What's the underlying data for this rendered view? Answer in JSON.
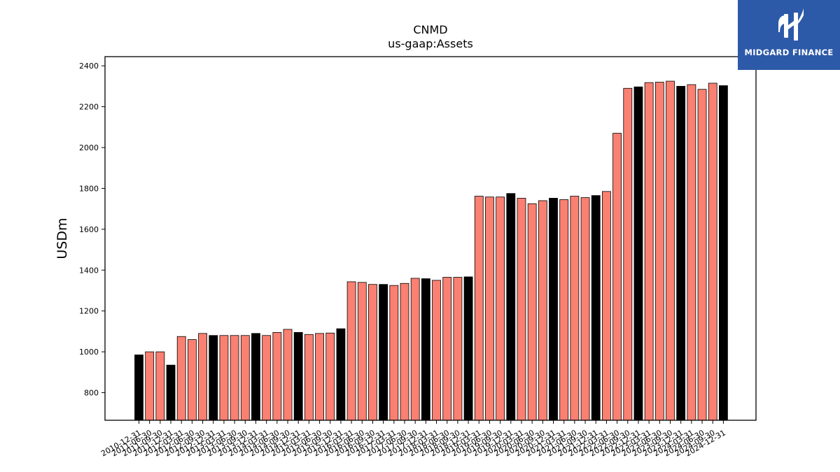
{
  "chart_data": {
    "type": "bar",
    "title": "CNMD",
    "subtitle": "us-gaap:Assets",
    "ylabel": "USDm",
    "ylim": [
      665,
      2445
    ],
    "yticks": [
      800,
      1000,
      1200,
      1400,
      1600,
      1800,
      2000,
      2200,
      2400
    ],
    "colors": {
      "annual": "#000000",
      "quarterly": "#fa8072",
      "edge": "#000000"
    },
    "categories": [
      "2010-12-31",
      "2011-06-30",
      "2011-09-30",
      "2011-12-31",
      "2012-03-31",
      "2012-06-30",
      "2012-09-30",
      "2012-12-31",
      "2013-03-31",
      "2013-06-30",
      "2013-09-30",
      "2013-12-31",
      "2014-03-31",
      "2014-06-30",
      "2014-09-30",
      "2014-12-31",
      "2015-03-31",
      "2015-06-30",
      "2015-09-30",
      "2015-12-31",
      "2016-03-31",
      "2016-06-30",
      "2016-09-30",
      "2016-12-31",
      "2017-03-31",
      "2017-06-30",
      "2017-09-30",
      "2017-12-31",
      "2018-03-31",
      "2018-06-30",
      "2018-09-30",
      "2018-12-31",
      "2019-03-31",
      "2019-06-30",
      "2019-09-30",
      "2019-12-31",
      "2020-03-31",
      "2020-06-30",
      "2020-09-30",
      "2020-12-31",
      "2021-03-31",
      "2021-06-30",
      "2021-09-30",
      "2021-12-31",
      "2022-03-31",
      "2022-06-30",
      "2022-09-30",
      "2022-12-31",
      "2023-03-31",
      "2023-06-30",
      "2023-09-30",
      "2023-12-31",
      "2024-03-31",
      "2024-06-30",
      "2024-09-30",
      "2024-12-31"
    ],
    "values": [
      985,
      1000,
      1000,
      935,
      1075,
      1060,
      1090,
      1080,
      1080,
      1080,
      1080,
      1090,
      1080,
      1095,
      1110,
      1095,
      1085,
      1090,
      1092,
      1113,
      1343,
      1340,
      1330,
      1330,
      1325,
      1335,
      1360,
      1358,
      1350,
      1365,
      1365,
      1367,
      1762,
      1758,
      1758,
      1775,
      1752,
      1725,
      1740,
      1752,
      1745,
      1762,
      1755,
      1765,
      1785,
      2070,
      2290,
      2297,
      2318,
      2320,
      2325,
      2300,
      2308,
      2285,
      2315,
      2303
    ],
    "period": [
      "annual",
      "quarterly",
      "quarterly",
      "annual",
      "quarterly",
      "quarterly",
      "quarterly",
      "annual",
      "quarterly",
      "quarterly",
      "quarterly",
      "annual",
      "quarterly",
      "quarterly",
      "quarterly",
      "annual",
      "quarterly",
      "quarterly",
      "quarterly",
      "annual",
      "quarterly",
      "quarterly",
      "quarterly",
      "annual",
      "quarterly",
      "quarterly",
      "quarterly",
      "annual",
      "quarterly",
      "quarterly",
      "quarterly",
      "annual",
      "quarterly",
      "quarterly",
      "quarterly",
      "annual",
      "quarterly",
      "quarterly",
      "quarterly",
      "annual",
      "quarterly",
      "quarterly",
      "quarterly",
      "annual",
      "quarterly",
      "quarterly",
      "quarterly",
      "annual",
      "quarterly",
      "quarterly",
      "quarterly",
      "annual",
      "quarterly",
      "quarterly",
      "quarterly",
      "annual"
    ]
  },
  "logo": {
    "text": "MIDGARD FINANCE",
    "icon": "midgard-logo-icon"
  }
}
